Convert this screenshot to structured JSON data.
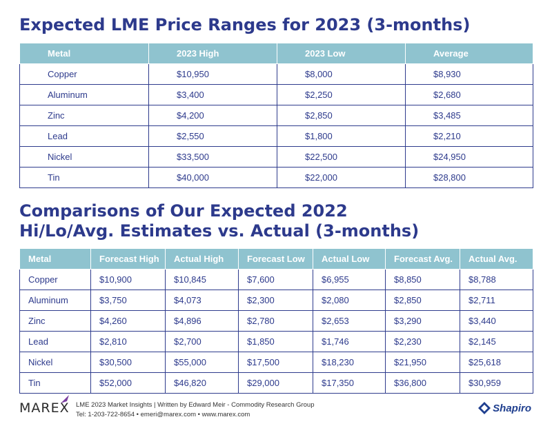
{
  "table1": {
    "title": "Expected LME Price Ranges for 2023 (3-months)",
    "headers": [
      "Metal",
      "2023 High",
      "2023 Low",
      "Average"
    ],
    "rows": [
      [
        "Copper",
        "$10,950",
        "$8,000",
        "$8,930"
      ],
      [
        "Aluminum",
        "$3,400",
        "$2,250",
        "$2,680"
      ],
      [
        "Zinc",
        "$4,200",
        "$2,850",
        "$3,485"
      ],
      [
        "Lead",
        "$2,550",
        "$1,800",
        "$2,210"
      ],
      [
        "Nickel",
        "$33,500",
        "$22,500",
        "$24,950"
      ],
      [
        "Tin",
        "$40,000",
        "$22,000",
        "$28,800"
      ]
    ]
  },
  "table2": {
    "title_line1": "Comparisons of Our Expected 2022",
    "title_line2": "Hi/Lo/Avg. Estimates vs. Actual (3-months)",
    "headers": [
      "Metal",
      "Forecast High",
      "Actual High",
      "Forecast Low",
      "Actual Low",
      "Forecast Avg.",
      "Actual Avg."
    ],
    "rows": [
      [
        "Copper",
        "$10,900",
        "$10,845",
        "$7,600",
        "$6,955",
        "$8,850",
        "$8,788"
      ],
      [
        "Aluminum",
        "$3,750",
        "$4,073",
        "$2,300",
        "$2,080",
        "$2,850",
        "$2,711"
      ],
      [
        "Zinc",
        "$4,260",
        "$4,896",
        "$2,780",
        "$2,653",
        "$3,290",
        "$3,440"
      ],
      [
        "Lead",
        "$2,810",
        "$2,700",
        "$1,850",
        "$1,746",
        "$2,230",
        "$2,145"
      ],
      [
        "Nickel",
        "$30,500",
        "$55,000",
        "$17,500",
        "$18,230",
        "$21,950",
        "$25,618"
      ],
      [
        "Tin",
        "$52,000",
        "$46,820",
        "$29,000",
        "$17,350",
        "$36,800",
        "$30,959"
      ]
    ]
  },
  "footer": {
    "logo": "MAREX",
    "line1": "LME 2023 Market Insights  |  Written by Edward Meir - Commodity Research Group",
    "line2": "Tel: 1-203-722-8654  •  emeri@marex.com  •  www.marex.com",
    "brand": "Shapiro"
  },
  "colors": {
    "title": "#2d3a8c",
    "header_bg": "#8fc3cf",
    "border": "#2d3a8c"
  }
}
